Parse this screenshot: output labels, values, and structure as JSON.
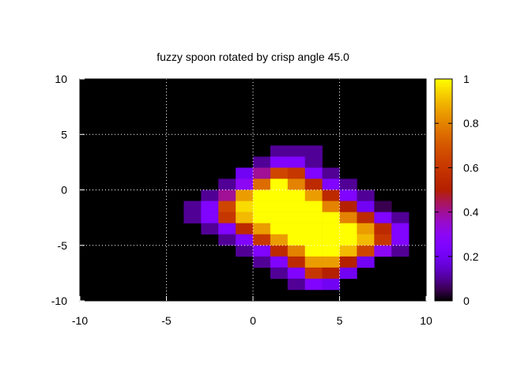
{
  "chart_data": {
    "type": "heatmap",
    "title": "fuzzy spoon rotated by crisp angle 45.0",
    "xlabel": "",
    "ylabel": "",
    "xlim": [
      -10,
      10
    ],
    "ylim": [
      -10,
      10
    ],
    "xticks": [
      -10,
      -5,
      0,
      5,
      10
    ],
    "yticks": [
      -10,
      -5,
      0,
      5,
      10
    ],
    "grid": true,
    "cell_size": 1,
    "row_y_values": [
      4,
      3,
      2,
      1,
      0,
      -1,
      -2,
      -3,
      -4,
      -5,
      -6,
      -7,
      -8,
      -9
    ],
    "x_start": -4,
    "rows": [
      [
        null,
        null,
        null,
        null,
        null,
        0.1,
        0.1,
        0.1,
        null,
        null,
        null,
        null,
        null,
        null
      ],
      [
        null,
        null,
        null,
        null,
        0.1,
        0.25,
        0.25,
        0.1,
        null,
        null,
        null,
        null,
        null,
        null
      ],
      [
        null,
        null,
        null,
        0.2,
        0.4,
        0.65,
        0.6,
        0.25,
        0.1,
        null,
        null,
        null,
        null,
        null
      ],
      [
        null,
        null,
        0.1,
        0.3,
        0.75,
        1.0,
        0.8,
        0.55,
        0.25,
        0.1,
        null,
        null,
        null,
        null
      ],
      [
        null,
        0.1,
        0.4,
        0.85,
        1.0,
        1.0,
        1.0,
        0.85,
        0.55,
        0.25,
        0.1,
        null,
        null,
        null
      ],
      [
        0.1,
        0.25,
        0.65,
        0.95,
        1.0,
        1.0,
        1.0,
        1.0,
        0.8,
        0.5,
        0.2,
        0.05,
        null,
        null
      ],
      [
        0.1,
        0.25,
        0.6,
        0.9,
        1.0,
        1.0,
        1.0,
        1.0,
        1.0,
        0.8,
        0.55,
        0.25,
        0.1,
        null
      ],
      [
        null,
        0.1,
        0.25,
        0.55,
        0.85,
        1.0,
        1.0,
        1.0,
        1.0,
        1.0,
        0.85,
        0.55,
        0.25,
        null
      ],
      [
        null,
        null,
        0.1,
        0.25,
        0.6,
        0.85,
        1.0,
        1.0,
        1.0,
        1.0,
        0.9,
        0.6,
        0.25,
        null
      ],
      [
        null,
        null,
        null,
        0.1,
        0.25,
        0.55,
        0.8,
        1.0,
        1.0,
        0.9,
        0.65,
        0.3,
        0.1,
        null
      ],
      [
        null,
        null,
        null,
        null,
        0.1,
        0.25,
        0.55,
        0.85,
        0.85,
        0.5,
        0.2,
        null,
        null,
        null
      ],
      [
        null,
        null,
        null,
        null,
        null,
        0.1,
        0.25,
        0.6,
        0.5,
        0.2,
        null,
        null,
        null,
        null
      ],
      [
        null,
        null,
        null,
        null,
        null,
        null,
        0.1,
        0.25,
        0.2,
        null,
        null,
        null,
        null,
        null
      ],
      [
        null,
        null,
        null,
        null,
        null,
        null,
        null,
        null,
        null,
        null,
        null,
        null,
        null,
        null
      ]
    ],
    "colorbar": {
      "range": [
        0,
        1
      ],
      "ticks": [
        0,
        0.2,
        0.4,
        0.6,
        0.8,
        1
      ],
      "tick_labels": [
        "0",
        "0.2",
        "0.4",
        "0.6",
        "0.8",
        "1"
      ],
      "palette": "black-blue-purple-red-orange-yellow"
    },
    "colors": {
      "background": "#000000",
      "grid": "#ffffff",
      "frame": "#000000"
    }
  }
}
